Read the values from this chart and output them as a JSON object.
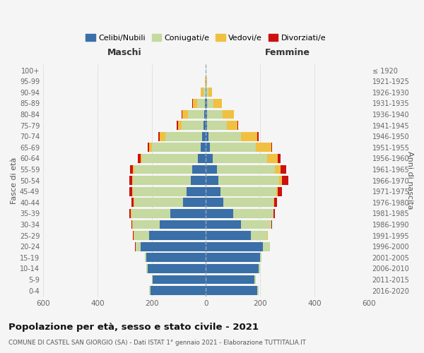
{
  "age_groups": [
    "0-4",
    "5-9",
    "10-14",
    "15-19",
    "20-24",
    "25-29",
    "30-34",
    "35-39",
    "40-44",
    "45-49",
    "50-54",
    "55-59",
    "60-64",
    "65-69",
    "70-74",
    "75-79",
    "80-84",
    "85-89",
    "90-94",
    "95-99",
    "100+"
  ],
  "birth_years": [
    "2016-2020",
    "2011-2015",
    "2006-2010",
    "2001-2005",
    "1996-2000",
    "1991-1995",
    "1986-1990",
    "1981-1985",
    "1976-1980",
    "1971-1975",
    "1966-1970",
    "1961-1965",
    "1956-1960",
    "1951-1955",
    "1946-1950",
    "1941-1945",
    "1936-1940",
    "1931-1935",
    "1926-1930",
    "1921-1925",
    "≤ 1920"
  ],
  "maschi": {
    "celibi": [
      205,
      195,
      215,
      220,
      240,
      210,
      170,
      130,
      85,
      70,
      55,
      50,
      30,
      20,
      15,
      8,
      5,
      3,
      2,
      0,
      0
    ],
    "coniugati": [
      5,
      5,
      5,
      5,
      20,
      55,
      100,
      145,
      180,
      200,
      215,
      215,
      205,
      180,
      135,
      82,
      62,
      30,
      8,
      2,
      0
    ],
    "vedovi": [
      0,
      0,
      0,
      0,
      0,
      2,
      2,
      2,
      2,
      3,
      3,
      5,
      5,
      10,
      20,
      12,
      20,
      15,
      8,
      2,
      0
    ],
    "divorziati": [
      0,
      0,
      0,
      0,
      1,
      2,
      3,
      5,
      8,
      10,
      10,
      10,
      10,
      5,
      5,
      5,
      2,
      2,
      0,
      0,
      0
    ]
  },
  "femmine": {
    "nubili": [
      190,
      180,
      195,
      200,
      210,
      165,
      130,
      100,
      65,
      55,
      45,
      40,
      25,
      15,
      10,
      5,
      5,
      3,
      2,
      0,
      0
    ],
    "coniugate": [
      5,
      5,
      5,
      5,
      25,
      60,
      110,
      148,
      185,
      205,
      225,
      215,
      200,
      170,
      120,
      72,
      57,
      25,
      8,
      2,
      0
    ],
    "vedove": [
      0,
      0,
      0,
      0,
      1,
      2,
      2,
      2,
      3,
      5,
      10,
      20,
      40,
      55,
      60,
      40,
      40,
      30,
      12,
      3,
      0
    ],
    "divorziate": [
      0,
      0,
      0,
      0,
      1,
      2,
      3,
      5,
      10,
      15,
      25,
      20,
      10,
      5,
      5,
      3,
      2,
      2,
      0,
      0,
      0
    ]
  },
  "colors": {
    "celibi_nubili": "#3a6fa8",
    "coniugati": "#c5d9a0",
    "vedovi": "#f0c040",
    "divorziati": "#cc1111"
  },
  "xlim": 600,
  "title": "Popolazione per età, sesso e stato civile - 2021",
  "subtitle": "COMUNE DI CASTEL SAN GIORGIO (SA) - Dati ISTAT 1° gennaio 2021 - Elaborazione TUTTITALIA.IT",
  "ylabel_left": "Fasce di età",
  "ylabel_right": "Anni di nascita",
  "xlabel_left": "Maschi",
  "xlabel_right": "Femmine",
  "bg_color": "#f5f5f5",
  "grid_color": "#cccccc"
}
